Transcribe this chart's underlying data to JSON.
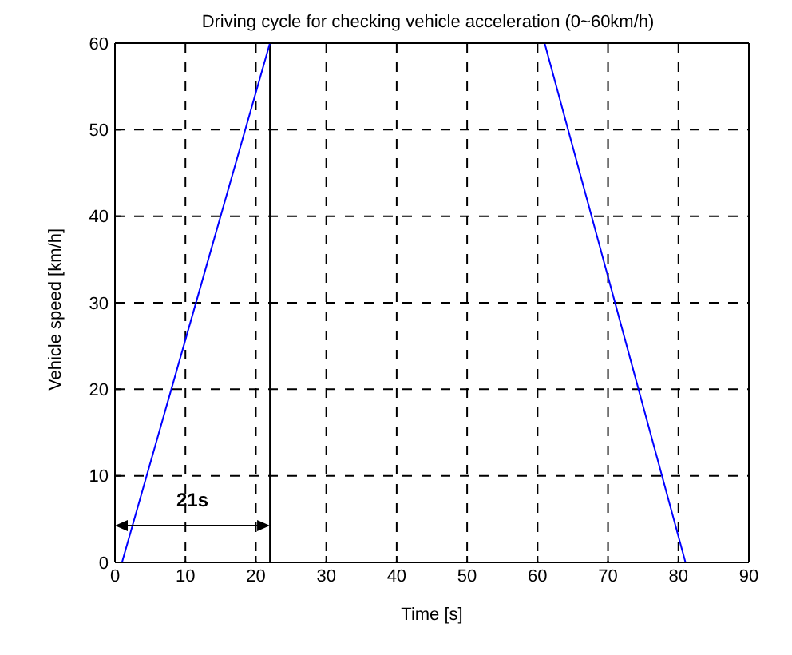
{
  "chart_data": {
    "type": "line",
    "title": "Driving cycle for checking vehicle acceleration (0~60km/h)",
    "xlabel": "Time [s]",
    "ylabel": "Vehicle speed [km/h]",
    "x": [
      1,
      22,
      61,
      81
    ],
    "series": [
      {
        "color": "#0000ff",
        "values": [
          0,
          60,
          60,
          0
        ]
      }
    ],
    "xlim": [
      0,
      90
    ],
    "xticks": [
      0,
      10,
      20,
      30,
      40,
      50,
      60,
      70,
      80,
      90
    ],
    "ylim": [
      0,
      60
    ],
    "yticks": [
      0,
      10,
      20,
      30,
      40,
      50,
      60
    ],
    "grid": true,
    "legend": false,
    "marker": "none",
    "line_style": "solid",
    "ref_lines": [
      {
        "axis": "x",
        "value": 22,
        "color": "#000000"
      }
    ],
    "annotations": [
      "21s"
    ]
  }
}
